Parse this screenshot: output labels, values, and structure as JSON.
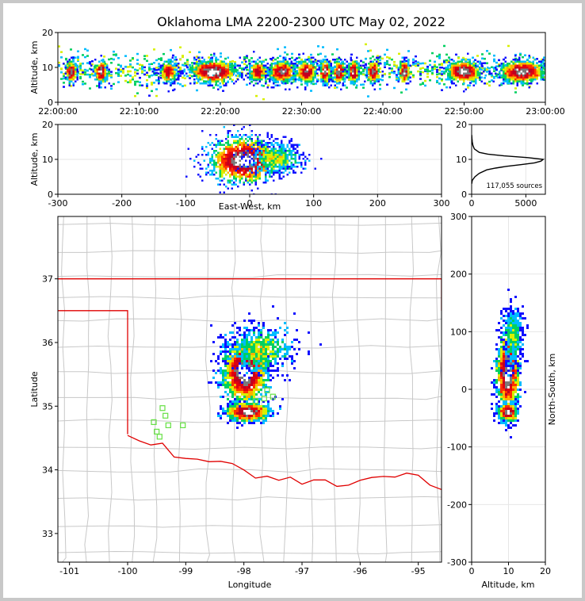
{
  "chart_data": {
    "type": "heatmap",
    "title": "Oklahoma LMA 2200-2300 UTC May 02, 2022",
    "colormap": [
      "#1010ff",
      "#00bcff",
      "#00d060",
      "#d8f000",
      "#ffb000",
      "#ff3000",
      "#e00010",
      "#c00020",
      "#7a7a7a",
      "#ffffff"
    ],
    "time_height": {
      "ylabel": "Altitude, km",
      "xticks": [
        "22:00:00",
        "22:10:00",
        "22:20:00",
        "22:30:00",
        "22:40:00",
        "22:50:00",
        "23:00:00"
      ],
      "yticks": [
        "0",
        "10",
        "20"
      ],
      "ylim": [
        0,
        20
      ],
      "cells_minutes": [
        {
          "t": 1.5,
          "w": 0.6,
          "intensity": 0.9
        },
        {
          "t": 5.2,
          "w": 0.7,
          "intensity": 0.95
        },
        {
          "t": 13.5,
          "w": 1.0,
          "intensity": 0.7
        },
        {
          "t": 19.0,
          "w": 2.6,
          "intensity": 1.0
        },
        {
          "t": 24.5,
          "w": 1.0,
          "intensity": 0.75
        },
        {
          "t": 27.5,
          "w": 1.5,
          "intensity": 0.9
        },
        {
          "t": 30.5,
          "w": 1.2,
          "intensity": 0.85
        },
        {
          "t": 32.8,
          "w": 0.6,
          "intensity": 0.95
        },
        {
          "t": 34.5,
          "w": 0.7,
          "intensity": 0.95
        },
        {
          "t": 36.3,
          "w": 0.6,
          "intensity": 0.95
        },
        {
          "t": 38.7,
          "w": 0.7,
          "intensity": 0.9
        },
        {
          "t": 42.5,
          "w": 0.6,
          "intensity": 0.95
        },
        {
          "t": 49.8,
          "w": 2.0,
          "intensity": 0.95
        },
        {
          "t": 57.0,
          "w": 2.6,
          "intensity": 0.95
        }
      ]
    },
    "ew_height": {
      "xlabel": "East-West, km",
      "ylabel": "Altitude, km",
      "xticks": [
        "-300",
        "-200",
        "-100",
        "0",
        "100",
        "200",
        "300"
      ],
      "yticks": [
        "0",
        "10",
        "20"
      ],
      "xlim": [
        -300,
        300
      ],
      "ylim": [
        0,
        20
      ]
    },
    "altitude_histogram": {
      "xticks": [
        "0",
        "5000"
      ],
      "yticks": [
        "0",
        "10",
        "20"
      ],
      "xlim": [
        0,
        6800
      ],
      "ylim": [
        0,
        20
      ],
      "altitude_km": [
        3.0,
        4.0,
        5.0,
        6.0,
        7.0,
        7.5,
        8.0,
        8.5,
        9.0,
        9.5,
        10.0,
        10.5,
        11.0,
        11.5,
        12.0,
        13.0,
        14.0,
        15.0,
        16.0,
        17.0
      ],
      "counts": [
        10,
        60,
        300,
        700,
        1400,
        2200,
        3200,
        4600,
        5800,
        6400,
        6600,
        5200,
        3000,
        1500,
        700,
        250,
        120,
        60,
        30,
        10
      ],
      "annotation": "117,055 sources"
    },
    "plan_view": {
      "xlabel": "Longitude",
      "ylabel": "Latitude",
      "xticks": [
        "-101",
        "-100",
        "-99",
        "-98",
        "-97",
        "-96",
        "-95"
      ],
      "yticks": [
        "33",
        "34",
        "35",
        "36",
        "37"
      ],
      "xlim": [
        -101.2,
        -94.6
      ],
      "ylim": [
        32.55,
        37.98
      ],
      "stations": [
        [
          -99.4,
          34.97
        ],
        [
          -99.35,
          34.85
        ],
        [
          -99.55,
          34.75
        ],
        [
          -99.3,
          34.7
        ],
        [
          -99.05,
          34.7
        ],
        [
          -99.5,
          34.6
        ],
        [
          -99.45,
          34.52
        ],
        [
          -97.8,
          35.08
        ],
        [
          -97.65,
          35.12
        ],
        [
          -97.5,
          35.15
        ],
        [
          -97.6,
          35.25
        ]
      ]
    },
    "ns_height": {
      "xlabel": "Altitude, km",
      "ylabel": "North-South, km",
      "xticks": [
        "0",
        "10",
        "20"
      ],
      "yticks": [
        "-300",
        "-200",
        "-100",
        "0",
        "100",
        "200",
        "300"
      ],
      "xlim": [
        0,
        20
      ],
      "ylim": [
        -300,
        300
      ]
    }
  }
}
